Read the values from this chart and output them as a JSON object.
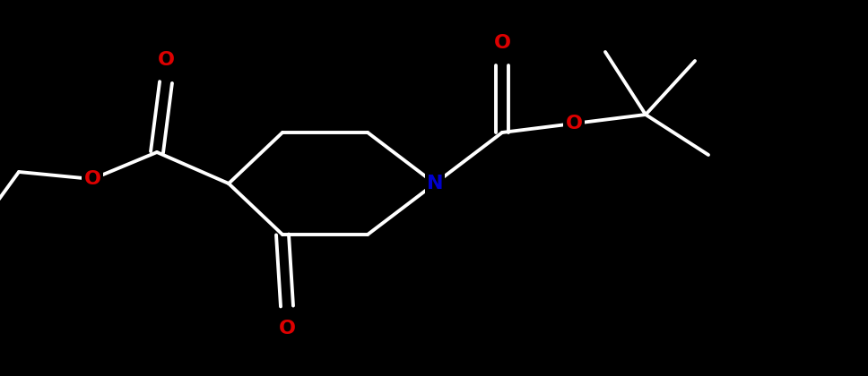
{
  "background_color": "#000000",
  "bond_color": "#ffffff",
  "N_color": "#0000cc",
  "O_color": "#dd0000",
  "bond_width": 2.8,
  "figsize": [
    9.68,
    4.2
  ],
  "dpi": 100,
  "xlim": [
    0,
    9.68
  ],
  "ylim": [
    0,
    4.2
  ]
}
